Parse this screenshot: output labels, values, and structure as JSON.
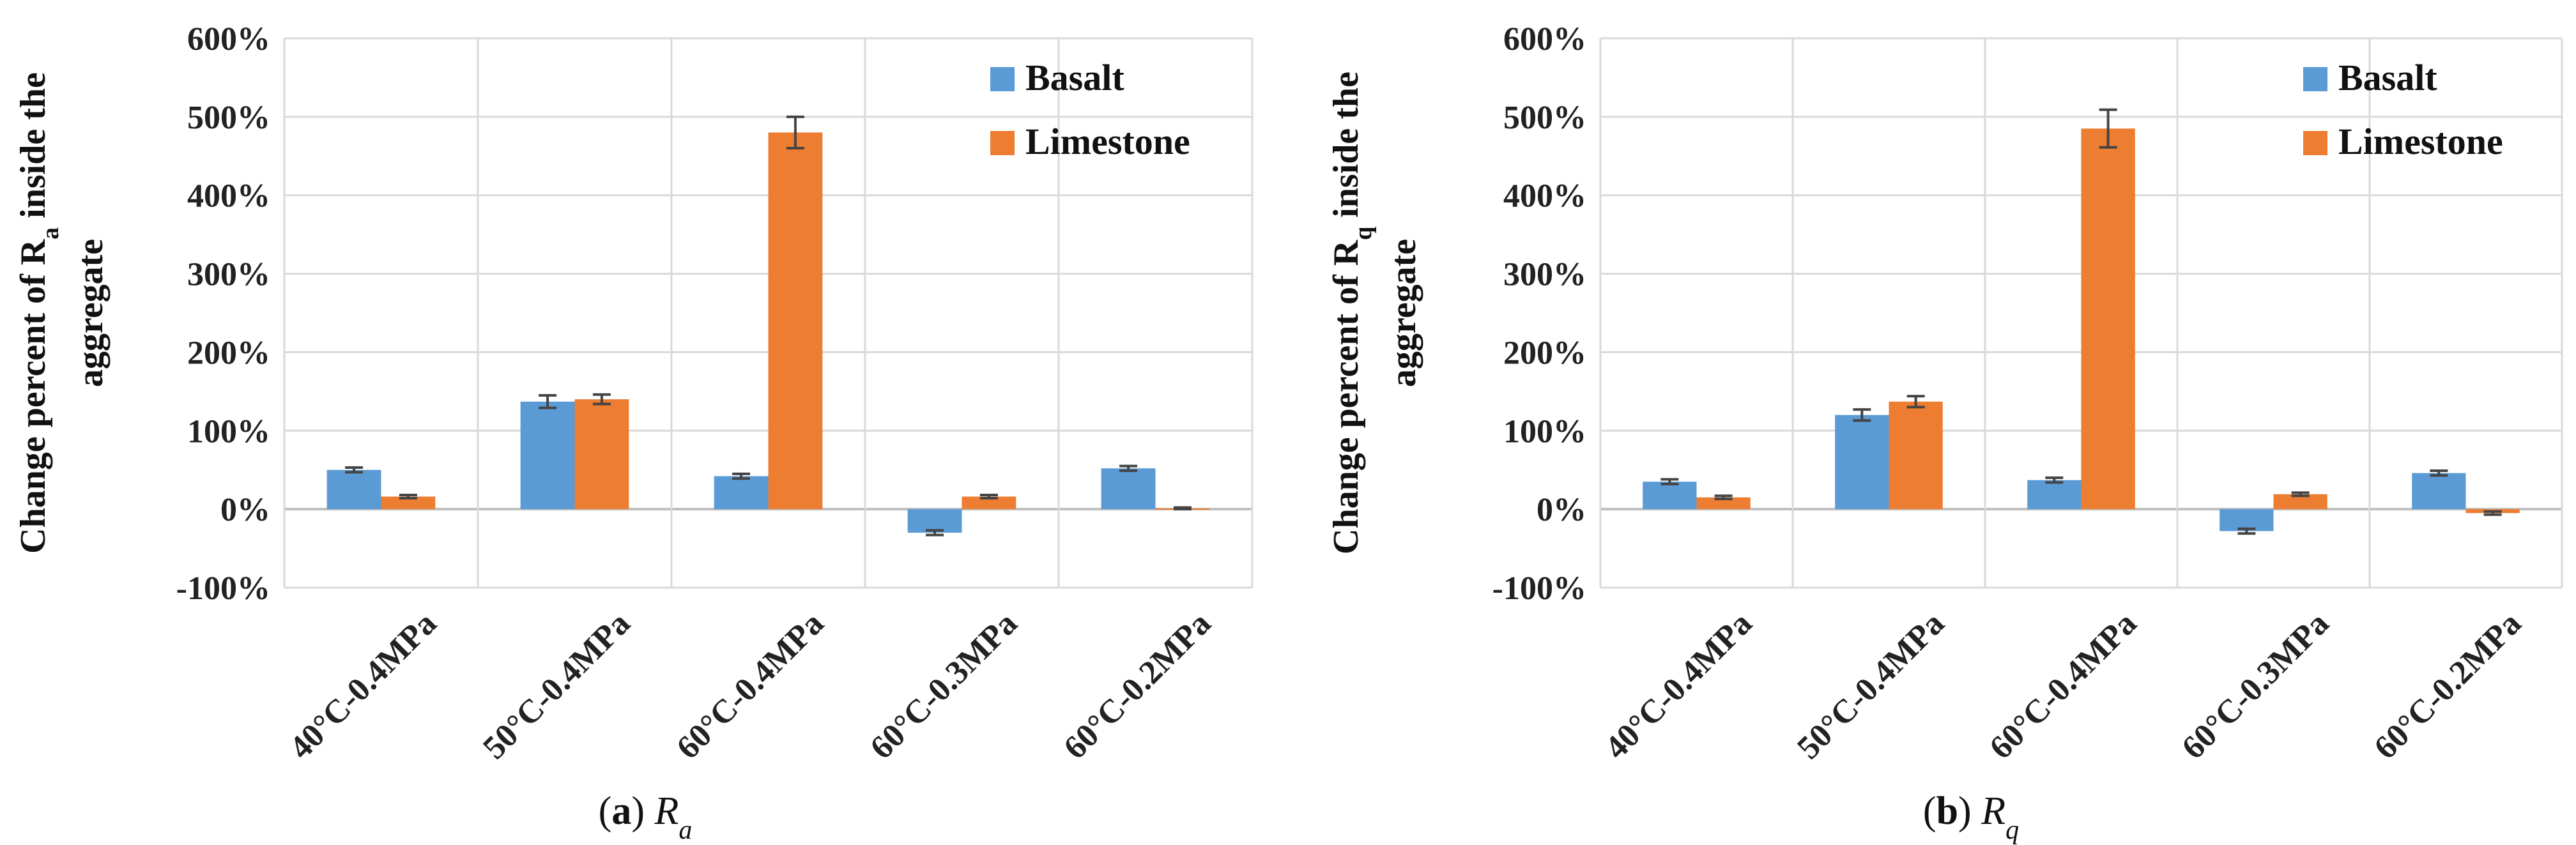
{
  "colors": {
    "basalt": "#5b9bd5",
    "limestone": "#ed7d31"
  },
  "chart_data": [
    {
      "type": "bar",
      "panel_letter": "a",
      "caption_symbol": "R",
      "caption_sub": "a",
      "ylabel_line1_prefix": "Change percent of R",
      "ylabel_line1_sub": "a",
      "ylabel_line1_suffix": " inside the",
      "ylabel_line2": "aggregate",
      "yticks": [
        "600%",
        "500%",
        "400%",
        "300%",
        "200%",
        "100%",
        "0%",
        "-100%"
      ],
      "ylim": [
        -100,
        600
      ],
      "categories": [
        "40°C-0.4MPa",
        "50°C-0.4MPa",
        "60°C-0.4MPa",
        "60°C-0.3MPa",
        "60°C-0.2MPa"
      ],
      "legend_position": "top-right",
      "series": [
        {
          "name": "Basalt",
          "values": [
            50,
            137,
            42,
            -30,
            52
          ],
          "errors": [
            3,
            8,
            3,
            3,
            3
          ]
        },
        {
          "name": "Limestone",
          "values": [
            16,
            140,
            480,
            16,
            1
          ],
          "errors": [
            2,
            6,
            20,
            2,
            1
          ]
        }
      ]
    },
    {
      "type": "bar",
      "panel_letter": "b",
      "caption_symbol": "R",
      "caption_sub": "q",
      "ylabel_line1_prefix": "Change percent of R",
      "ylabel_line1_sub": "q",
      "ylabel_line1_suffix": " inside the",
      "ylabel_line2": "aggregate",
      "yticks": [
        "600%",
        "500%",
        "400%",
        "300%",
        "200%",
        "100%",
        "0%",
        "-100%"
      ],
      "ylim": [
        -100,
        600
      ],
      "categories": [
        "40°C-0.4MPa",
        "50°C-0.4MPa",
        "60°C-0.4MPa",
        "60°C-0.3MPa",
        "60°C-0.2MPa"
      ],
      "legend_position": "top-right",
      "series": [
        {
          "name": "Basalt",
          "values": [
            35,
            120,
            37,
            -28,
            46
          ],
          "errors": [
            3,
            7,
            3,
            3,
            3
          ]
        },
        {
          "name": "Limestone",
          "values": [
            15,
            137,
            485,
            19,
            -5
          ],
          "errors": [
            2,
            7,
            24,
            2,
            2
          ]
        }
      ]
    }
  ]
}
